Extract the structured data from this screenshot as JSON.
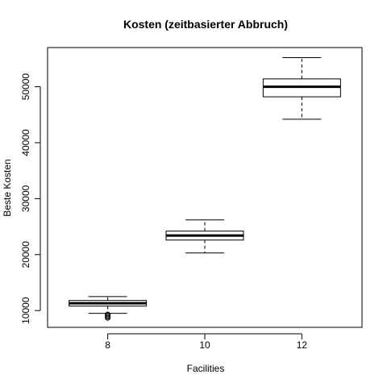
{
  "chart_data": {
    "type": "boxplot",
    "title": "Kosten (zeitbasierter Abbruch)",
    "xlabel": "Facilities",
    "ylabel": "Beste Kosten",
    "categories": [
      "8",
      "10",
      "12"
    ],
    "ylim": [
      7000,
      57000
    ],
    "yticks": [
      10000,
      20000,
      30000,
      40000,
      50000
    ],
    "grid": false,
    "boxes": [
      {
        "category": "8",
        "whisker_low": 9500,
        "q1": 10800,
        "median": 11300,
        "q3": 11800,
        "whisker_high": 12500,
        "outliers": [
          9300,
          9100,
          8900,
          8700
        ]
      },
      {
        "category": "10",
        "whisker_low": 20300,
        "q1": 22600,
        "median": 23400,
        "q3": 24200,
        "whisker_high": 26200,
        "outliers": []
      },
      {
        "category": "12",
        "whisker_low": 44200,
        "q1": 48200,
        "median": 50000,
        "q3": 51400,
        "whisker_high": 55200,
        "outliers": []
      }
    ]
  }
}
